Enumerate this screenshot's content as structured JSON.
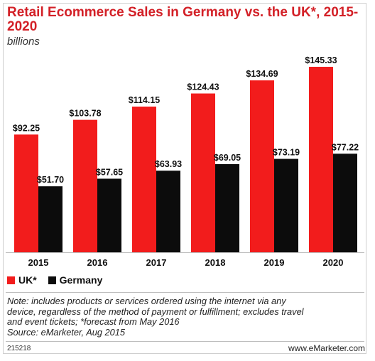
{
  "footer": {
    "note_lines": [
      "Note: includes products or services ordered using the internet via any",
      "device, regardless of the method of payment or fulfillment; excludes travel",
      "and event tickets; *forecast from May 2016"
    ],
    "source": "Source: eMarketer, Aug 2015",
    "id": "215218",
    "brand": "www.eMarketer.com"
  },
  "colors": {
    "uk": "#f21c1c",
    "germany": "#0c0c0c",
    "title": "#d32027"
  },
  "chart_data": {
    "type": "bar",
    "title": "Retail Ecommerce Sales in Germany vs. the UK*, 2015-2020",
    "subtitle": "billions",
    "categories": [
      "2015",
      "2016",
      "2017",
      "2018",
      "2019",
      "2020"
    ],
    "series": [
      {
        "name": "UK*",
        "values": [
          92.25,
          103.78,
          114.15,
          124.43,
          134.69,
          145.33
        ],
        "labels": [
          "$92.25",
          "$103.78",
          "$114.15",
          "$124.43",
          "$134.69",
          "$145.33"
        ],
        "color": "#f21c1c"
      },
      {
        "name": "Germany",
        "values": [
          51.7,
          57.65,
          63.93,
          69.05,
          73.19,
          77.22
        ],
        "labels": [
          "$51.70",
          "$57.65",
          "$63.93",
          "$69.05",
          "$73.19",
          "$77.22"
        ],
        "color": "#0c0c0c"
      }
    ],
    "ylim": [
      0,
      160
    ],
    "grid": false,
    "legend": "bottom-left"
  }
}
